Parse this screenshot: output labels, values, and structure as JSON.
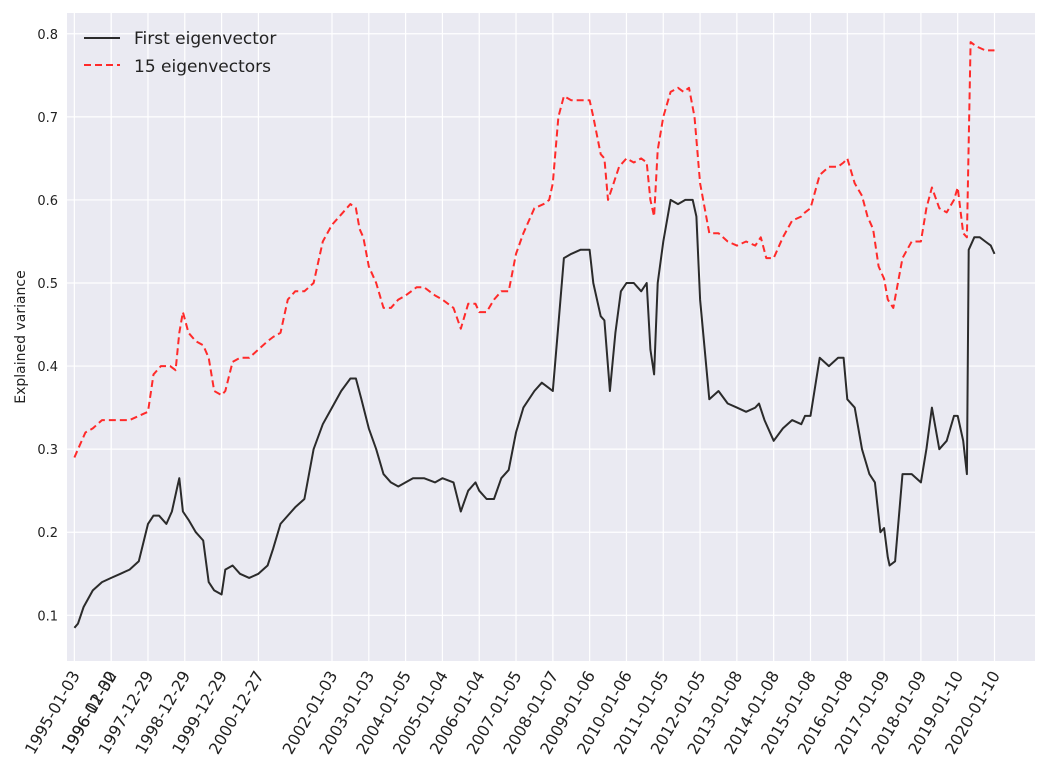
{
  "chart_data": {
    "type": "line",
    "title": "",
    "xlabel": "",
    "ylabel": "Explained variance",
    "ylim": [
      0.045,
      0.825
    ],
    "yticks": [
      0.1,
      0.2,
      0.3,
      0.4,
      0.5,
      0.6,
      0.7,
      0.8
    ],
    "x_tick_labels": [
      "1995-01-03",
      "1996-01-02",
      "1996-12-30",
      "1997-12-29",
      "1998-12-29",
      "1999-12-29",
      "2000-12-27",
      "2002-01-03",
      "2003-01-03",
      "2004-01-05",
      "2005-01-04",
      "2006-01-04",
      "2007-01-05",
      "2008-01-07",
      "2009-01-06",
      "2010-01-06",
      "2011-01-05",
      "2012-01-05",
      "2013-01-08",
      "2014-01-08",
      "2015-01-08",
      "2016-01-08",
      "2017-01-09",
      "2018-01-09",
      "2019-01-10",
      "2020-01-10"
    ],
    "x_year_range": [
      1994.8,
      2021.1
    ],
    "grid": true,
    "legend_position": "top-left",
    "series": [
      {
        "name": "First eigenvector",
        "color": "#2b2b2b",
        "style": "solid",
        "x": [
          1995.0,
          1995.1,
          1995.25,
          1995.5,
          1995.75,
          1996.0,
          1996.25,
          1996.5,
          1996.75,
          1997.0,
          1997.15,
          1997.3,
          1997.5,
          1997.65,
          1997.8,
          1997.85,
          1997.95,
          1998.1,
          1998.3,
          1998.5,
          1998.65,
          1998.8,
          1999.0,
          1999.1,
          1999.3,
          1999.5,
          1999.75,
          2000.0,
          2000.25,
          2000.4,
          2000.6,
          2000.8,
          2001.0,
          2001.25,
          2001.5,
          2001.75,
          2002.0,
          2002.25,
          2002.5,
          2002.65,
          2002.8,
          2003.0,
          2003.2,
          2003.4,
          2003.6,
          2003.8,
          2004.0,
          2004.2,
          2004.5,
          2004.8,
          2005.0,
          2005.3,
          2005.5,
          2005.7,
          2005.9,
          2006.0,
          2006.2,
          2006.4,
          2006.6,
          2006.8,
          2007.0,
          2007.2,
          2007.5,
          2007.7,
          2007.85,
          2008.0,
          2008.15,
          2008.3,
          2008.5,
          2008.75,
          2009.0,
          2009.1,
          2009.3,
          2009.4,
          2009.55,
          2009.7,
          2009.85,
          2010.0,
          2010.2,
          2010.4,
          2010.55,
          2010.65,
          2010.75,
          2010.85,
          2011.0,
          2011.2,
          2011.4,
          2011.6,
          2011.8,
          2011.9,
          2012.0,
          2012.25,
          2012.5,
          2012.75,
          2013.0,
          2013.25,
          2013.5,
          2013.6,
          2013.75,
          2014.0,
          2014.25,
          2014.5,
          2014.75,
          2014.85,
          2015.0,
          2015.25,
          2015.5,
          2015.75,
          2015.9,
          2016.0,
          2016.2,
          2016.4,
          2016.6,
          2016.75,
          2016.9,
          2017.0,
          2017.1,
          2017.15,
          2017.3,
          2017.5,
          2017.75,
          2018.0,
          2018.15,
          2018.3,
          2018.5,
          2018.7,
          2018.9,
          2019.0,
          2019.15,
          2019.25,
          2019.3,
          2019.45,
          2019.6,
          2019.75,
          2019.9,
          2020.0
        ],
        "y": [
          0.085,
          0.09,
          0.11,
          0.13,
          0.14,
          0.145,
          0.15,
          0.155,
          0.165,
          0.21,
          0.22,
          0.22,
          0.21,
          0.225,
          0.255,
          0.265,
          0.225,
          0.215,
          0.2,
          0.19,
          0.14,
          0.13,
          0.125,
          0.155,
          0.16,
          0.15,
          0.145,
          0.15,
          0.16,
          0.18,
          0.21,
          0.22,
          0.23,
          0.24,
          0.3,
          0.33,
          0.35,
          0.37,
          0.385,
          0.385,
          0.36,
          0.325,
          0.3,
          0.27,
          0.26,
          0.255,
          0.26,
          0.265,
          0.265,
          0.26,
          0.265,
          0.26,
          0.225,
          0.25,
          0.26,
          0.25,
          0.24,
          0.24,
          0.265,
          0.275,
          0.32,
          0.35,
          0.37,
          0.38,
          0.375,
          0.37,
          0.45,
          0.53,
          0.535,
          0.54,
          0.54,
          0.5,
          0.46,
          0.455,
          0.37,
          0.44,
          0.49,
          0.5,
          0.5,
          0.49,
          0.5,
          0.42,
          0.39,
          0.5,
          0.55,
          0.6,
          0.595,
          0.6,
          0.6,
          0.58,
          0.48,
          0.36,
          0.37,
          0.355,
          0.35,
          0.345,
          0.35,
          0.355,
          0.335,
          0.31,
          0.325,
          0.335,
          0.33,
          0.34,
          0.34,
          0.41,
          0.4,
          0.41,
          0.41,
          0.36,
          0.35,
          0.3,
          0.27,
          0.26,
          0.2,
          0.205,
          0.17,
          0.16,
          0.165,
          0.27,
          0.27,
          0.26,
          0.3,
          0.35,
          0.3,
          0.31,
          0.34,
          0.34,
          0.31,
          0.27,
          0.54,
          0.555,
          0.555,
          0.55,
          0.545,
          0.535
        ]
      },
      {
        "name": "15 eigenvectors",
        "color": "#ff2a2a",
        "style": "dashed",
        "x": [
          1995.0,
          1995.1,
          1995.3,
          1995.5,
          1995.75,
          1996.0,
          1996.25,
          1996.5,
          1996.75,
          1997.0,
          1997.15,
          1997.35,
          1997.6,
          1997.75,
          1997.85,
          1997.95,
          1998.1,
          1998.3,
          1998.5,
          1998.65,
          1998.8,
          1999.0,
          1999.1,
          1999.3,
          1999.5,
          1999.75,
          2000.0,
          2000.25,
          2000.4,
          2000.6,
          2000.8,
          2001.0,
          2001.25,
          2001.5,
          2001.75,
          2002.0,
          2002.3,
          2002.5,
          2002.65,
          2002.75,
          2002.85,
          2003.0,
          2003.2,
          2003.4,
          2003.6,
          2003.8,
          2004.0,
          2004.3,
          2004.5,
          2004.8,
          2005.0,
          2005.3,
          2005.5,
          2005.7,
          2005.9,
          2006.0,
          2006.2,
          2006.4,
          2006.6,
          2006.8,
          2007.0,
          2007.2,
          2007.5,
          2007.75,
          2007.9,
          2008.0,
          2008.15,
          2008.3,
          2008.5,
          2008.75,
          2009.0,
          2009.1,
          2009.3,
          2009.4,
          2009.5,
          2009.65,
          2009.8,
          2010.0,
          2010.2,
          2010.4,
          2010.55,
          2010.65,
          2010.75,
          2010.85,
          2011.0,
          2011.2,
          2011.4,
          2011.55,
          2011.7,
          2011.85,
          2012.0,
          2012.25,
          2012.5,
          2012.75,
          2013.0,
          2013.25,
          2013.5,
          2013.65,
          2013.8,
          2014.0,
          2014.25,
          2014.5,
          2014.75,
          2014.85,
          2015.0,
          2015.25,
          2015.5,
          2015.75,
          2015.9,
          2016.0,
          2016.2,
          2016.4,
          2016.55,
          2016.7,
          2016.85,
          2017.0,
          2017.1,
          2017.25,
          2017.5,
          2017.75,
          2018.0,
          2018.15,
          2018.3,
          2018.5,
          2018.7,
          2018.9,
          2019.0,
          2019.15,
          2019.25,
          2019.35,
          2019.5,
          2019.75,
          2020.0
        ],
        "y": [
          0.29,
          0.3,
          0.32,
          0.325,
          0.335,
          0.335,
          0.335,
          0.335,
          0.34,
          0.345,
          0.39,
          0.4,
          0.4,
          0.395,
          0.44,
          0.465,
          0.44,
          0.43,
          0.425,
          0.41,
          0.37,
          0.365,
          0.37,
          0.405,
          0.41,
          0.41,
          0.42,
          0.43,
          0.435,
          0.44,
          0.48,
          0.49,
          0.49,
          0.5,
          0.55,
          0.57,
          0.585,
          0.595,
          0.59,
          0.565,
          0.555,
          0.52,
          0.5,
          0.47,
          0.47,
          0.48,
          0.485,
          0.495,
          0.495,
          0.485,
          0.48,
          0.47,
          0.445,
          0.475,
          0.475,
          0.465,
          0.465,
          0.48,
          0.49,
          0.49,
          0.535,
          0.56,
          0.59,
          0.595,
          0.6,
          0.62,
          0.7,
          0.725,
          0.72,
          0.72,
          0.72,
          0.7,
          0.655,
          0.65,
          0.6,
          0.62,
          0.64,
          0.65,
          0.645,
          0.65,
          0.645,
          0.6,
          0.58,
          0.66,
          0.7,
          0.73,
          0.735,
          0.73,
          0.735,
          0.7,
          0.62,
          0.56,
          0.56,
          0.55,
          0.545,
          0.55,
          0.545,
          0.555,
          0.53,
          0.53,
          0.555,
          0.575,
          0.58,
          0.585,
          0.59,
          0.63,
          0.64,
          0.64,
          0.645,
          0.65,
          0.62,
          0.605,
          0.58,
          0.565,
          0.52,
          0.505,
          0.48,
          0.47,
          0.53,
          0.55,
          0.55,
          0.59,
          0.615,
          0.59,
          0.585,
          0.6,
          0.615,
          0.56,
          0.555,
          0.79,
          0.785,
          0.78,
          0.78
        ]
      }
    ]
  }
}
